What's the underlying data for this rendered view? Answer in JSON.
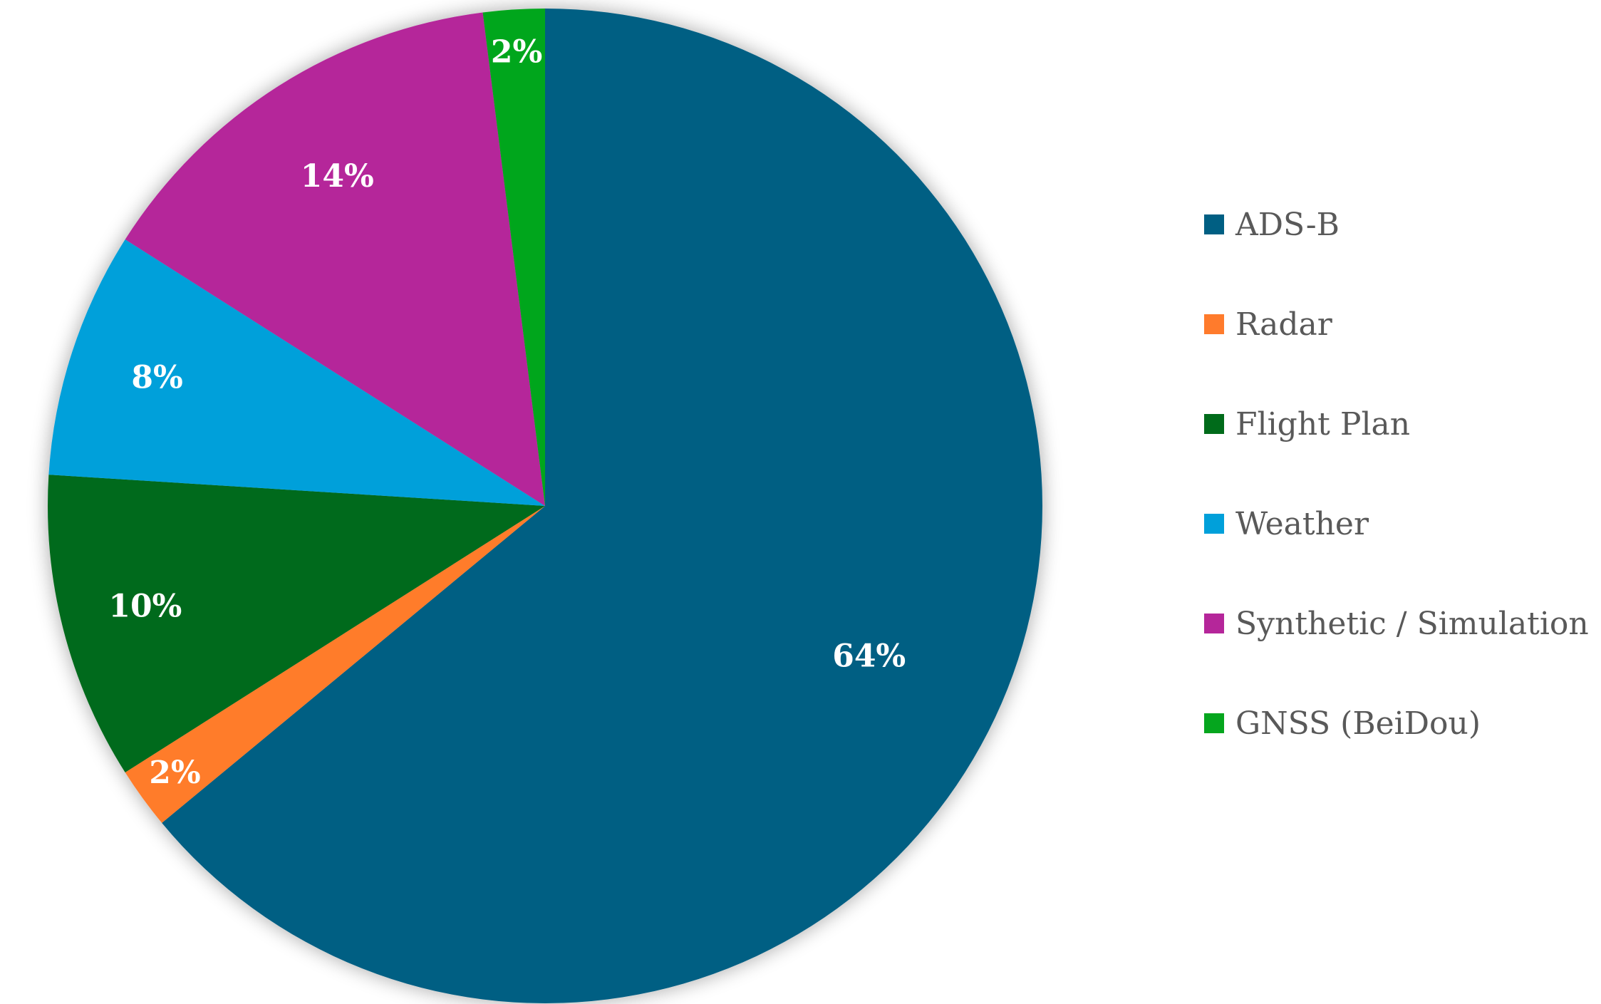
{
  "chart_data": {
    "type": "pie",
    "title": "",
    "categories": [
      "ADS-B",
      "Radar",
      "Flight Plan",
      "Weather",
      "Synthetic / Simulation",
      "GNSS (BeiDou)"
    ],
    "values": [
      64,
      2,
      10,
      8,
      14,
      2
    ],
    "value_labels": [
      "64%",
      "2%",
      "10%",
      "8%",
      "14%",
      "2%"
    ],
    "colors": [
      "#005F83",
      "#FF7B2C",
      "#006B1A",
      "#00A0DA",
      "#B5269A",
      "#05A61E"
    ],
    "start_angle": "12 o'clock",
    "direction": "clockwise",
    "legend_position": "right"
  }
}
